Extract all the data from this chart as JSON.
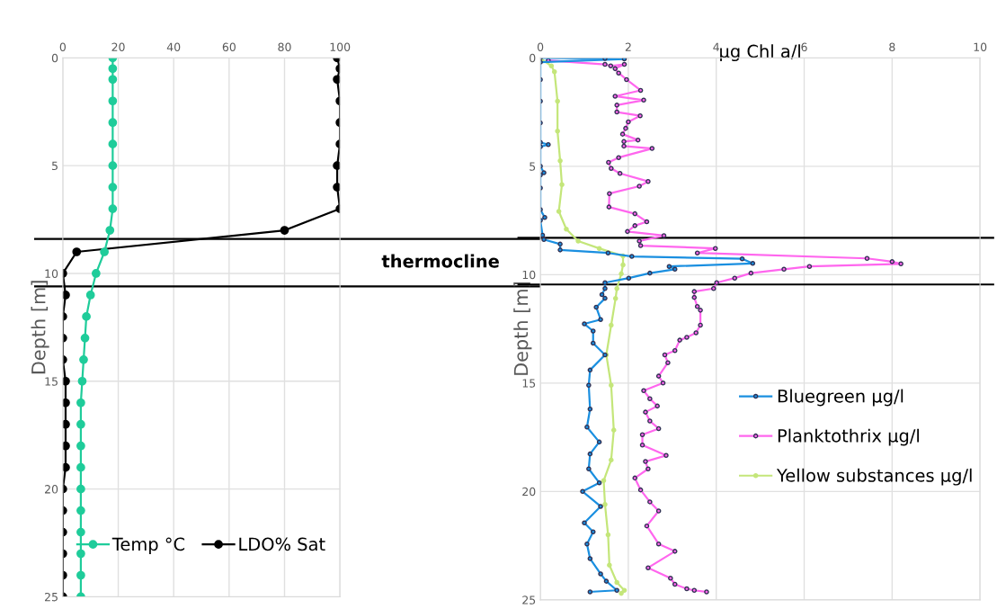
{
  "chart_data": [
    {
      "type": "line",
      "orientation": "horizontal",
      "ylabel": "Depth [m]",
      "xlim": [
        0,
        100
      ],
      "xticks": [
        0,
        20,
        40,
        60,
        80,
        100
      ],
      "ylim": [
        25,
        0
      ],
      "yticks": [
        0,
        5,
        10,
        15,
        20,
        25
      ],
      "grid": true,
      "legend": "bottom",
      "marker": "circle",
      "line_style": "solid",
      "annotations": [
        "thermocline"
      ],
      "ref_lines": [
        {
          "axis": "y",
          "value": 8.4,
          "color": "#000000"
        },
        {
          "axis": "y",
          "value": 10.6,
          "color": "#000000"
        }
      ],
      "series": [
        {
          "name": "Temp °C",
          "color": "#1fcc9a",
          "x": [
            0,
            0.5,
            1,
            2,
            3,
            4,
            5,
            6,
            7,
            8,
            9,
            10,
            11,
            12,
            13,
            14,
            15,
            16,
            17,
            18,
            19,
            20,
            21,
            22,
            23,
            24,
            25
          ],
          "values": [
            18,
            18,
            18,
            18,
            18,
            18,
            18,
            18,
            18,
            17,
            15,
            12,
            10,
            8.5,
            8,
            7.5,
            7,
            6.5,
            6.5,
            6.5,
            6.5,
            6.5,
            6.5,
            6.5,
            6.5,
            6.5,
            6.5
          ]
        },
        {
          "name": "LDO% Sat",
          "color": "#000000",
          "x": [
            0,
            0.5,
            1,
            2,
            3,
            4,
            5,
            6,
            7,
            8,
            9,
            10,
            11,
            12,
            13,
            14,
            15,
            16,
            17,
            18,
            19,
            20,
            21,
            22,
            23,
            24,
            25
          ],
          "values": [
            99,
            100,
            99,
            100,
            100,
            100,
            99,
            99,
            100,
            80,
            5,
            0,
            1,
            0,
            0,
            0,
            1,
            1,
            1,
            1,
            1,
            0,
            0,
            0,
            0,
            0,
            0
          ]
        }
      ]
    },
    {
      "type": "line",
      "orientation": "horizontal",
      "xlabel": "µg Chl a/l",
      "ylabel": "Depth [m]",
      "xlim": [
        0,
        10
      ],
      "xticks": [
        0,
        2,
        4,
        6,
        8,
        10
      ],
      "ylim": [
        25,
        0
      ],
      "yticks": [
        0,
        5,
        10,
        15,
        20,
        25
      ],
      "grid": true,
      "legend": "right",
      "marker": "circle",
      "line_style": "solid",
      "ref_lines": [
        {
          "axis": "y",
          "value": 8.3,
          "color": "#000000"
        },
        {
          "axis": "y",
          "value": 10.45,
          "color": "#000000"
        }
      ],
      "series": [
        {
          "name": "Bluegreen µg/l",
          "color": "#1a8fe0",
          "x": [
            0,
            0.03,
            0.05,
            0.2,
            1,
            2,
            3,
            3.9,
            4.0,
            4.1,
            5,
            5.3,
            5.4,
            6,
            7,
            7.36,
            7.5,
            8.18,
            8.38,
            8.59,
            8.86,
            9.0,
            9.16,
            9.27,
            9.48,
            9.62,
            9.75,
            9.93,
            10.16,
            10.37,
            10.64,
            10.92,
            11.09,
            11.5,
            12.07,
            12.27,
            12.6,
            13.16,
            13.7,
            14.4,
            15.1,
            16.2,
            17.03,
            17.72,
            18.27,
            18.96,
            19.6,
            20.0,
            20.69,
            21.45,
            21.86,
            22.42,
            23.1,
            23.8,
            24.14,
            24.56,
            24.63
          ],
          "values": [
            0,
            1.47,
            1.91,
            0,
            0,
            0,
            0,
            0,
            0.18,
            0,
            0,
            0.08,
            0,
            0,
            0,
            0.1,
            0,
            0.05,
            0.08,
            0.45,
            0.45,
            1.54,
            2.08,
            4.59,
            4.83,
            2.93,
            3.06,
            2.49,
            2.01,
            1.47,
            1.47,
            1.4,
            1.47,
            1.27,
            1.37,
            1.0,
            1.2,
            1.2,
            1.47,
            1.13,
            1.1,
            1.13,
            1.06,
            1.34,
            1.13,
            1.1,
            1.34,
            0.96,
            1.37,
            1.0,
            1.2,
            1.06,
            1.13,
            1.37,
            1.5,
            1.74,
            1.13
          ]
        },
        {
          "name": "Planktothrix µg/l",
          "color": "#ff66ee",
          "x": [
            0.12,
            0.3,
            0.37,
            0.3,
            0.5,
            0.7,
            1.0,
            1.5,
            1.77,
            1.95,
            2.18,
            2.5,
            2.67,
            2.95,
            3.25,
            3.52,
            3.79,
            3.86,
            4.07,
            4.18,
            4.6,
            4.82,
            5.1,
            5.33,
            5.7,
            5.92,
            6.26,
            6.88,
            7.19,
            7.56,
            7.74,
            8.01,
            8.2,
            8.45,
            8.66,
            8.79,
            9.0,
            9.25,
            9.4,
            9.5,
            9.62,
            9.75,
            9.93,
            10.16,
            10.37,
            10.64,
            10.78,
            11.05,
            11.47,
            11.64,
            12.33,
            12.68,
            12.89,
            13.02,
            13.5,
            13.7,
            14.06,
            14.68,
            15.0,
            15.35,
            15.72,
            16.06,
            16.34,
            16.75,
            17.1,
            17.38,
            17.86,
            18.34,
            18.62,
            18.96,
            19.38,
            19.93,
            20.48,
            20.9,
            21.59,
            22.42,
            22.76,
            23.52,
            24.0,
            24.28,
            24.49,
            24.56,
            24.63
          ],
          "values": [
            0.18,
            1.47,
            1.6,
            1.91,
            1.7,
            1.78,
            1.96,
            2.28,
            1.7,
            2.35,
            1.74,
            1.74,
            2.27,
            2.0,
            1.94,
            1.87,
            2.22,
            1.9,
            1.9,
            2.54,
            1.78,
            1.55,
            1.61,
            1.81,
            2.45,
            2.25,
            1.57,
            1.56,
            2.15,
            2.42,
            2.15,
            1.98,
            2.81,
            2.25,
            2.28,
            3.98,
            3.57,
            7.43,
            8.0,
            8.2,
            6.12,
            5.54,
            4.79,
            4.42,
            4.01,
            3.94,
            3.5,
            3.5,
            3.57,
            3.64,
            3.64,
            3.54,
            3.33,
            3.17,
            3.06,
            2.83,
            2.9,
            2.69,
            2.79,
            2.35,
            2.49,
            2.66,
            2.39,
            2.49,
            2.69,
            2.32,
            2.32,
            2.86,
            2.39,
            2.45,
            2.15,
            2.28,
            2.49,
            2.69,
            2.42,
            2.69,
            3.06,
            2.45,
            2.96,
            3.06,
            3.33,
            3.5,
            3.78
          ]
        },
        {
          "name": "Yellow substances µg/l",
          "color": "#c4e67a",
          "x": [
            0.03,
            0.37,
            0.64,
            2.0,
            3.38,
            4.75,
            5.85,
            7.08,
            7.9,
            8.45,
            8.79,
            9.14,
            9.55,
            9.96,
            10.64,
            11.1,
            12.33,
            13.7,
            15.1,
            17.17,
            18.55,
            19.5,
            20.6,
            22.0,
            23.4,
            24.2,
            24.56,
            24.7
          ],
          "values": [
            0,
            0.25,
            0.32,
            0.39,
            0.39,
            0.45,
            0.49,
            0.42,
            0.59,
            0.86,
            1.34,
            1.88,
            1.88,
            1.84,
            1.74,
            1.71,
            1.61,
            1.5,
            1.61,
            1.67,
            1.61,
            1.44,
            1.47,
            1.54,
            1.57,
            1.74,
            1.91,
            1.84
          ]
        }
      ]
    }
  ]
}
